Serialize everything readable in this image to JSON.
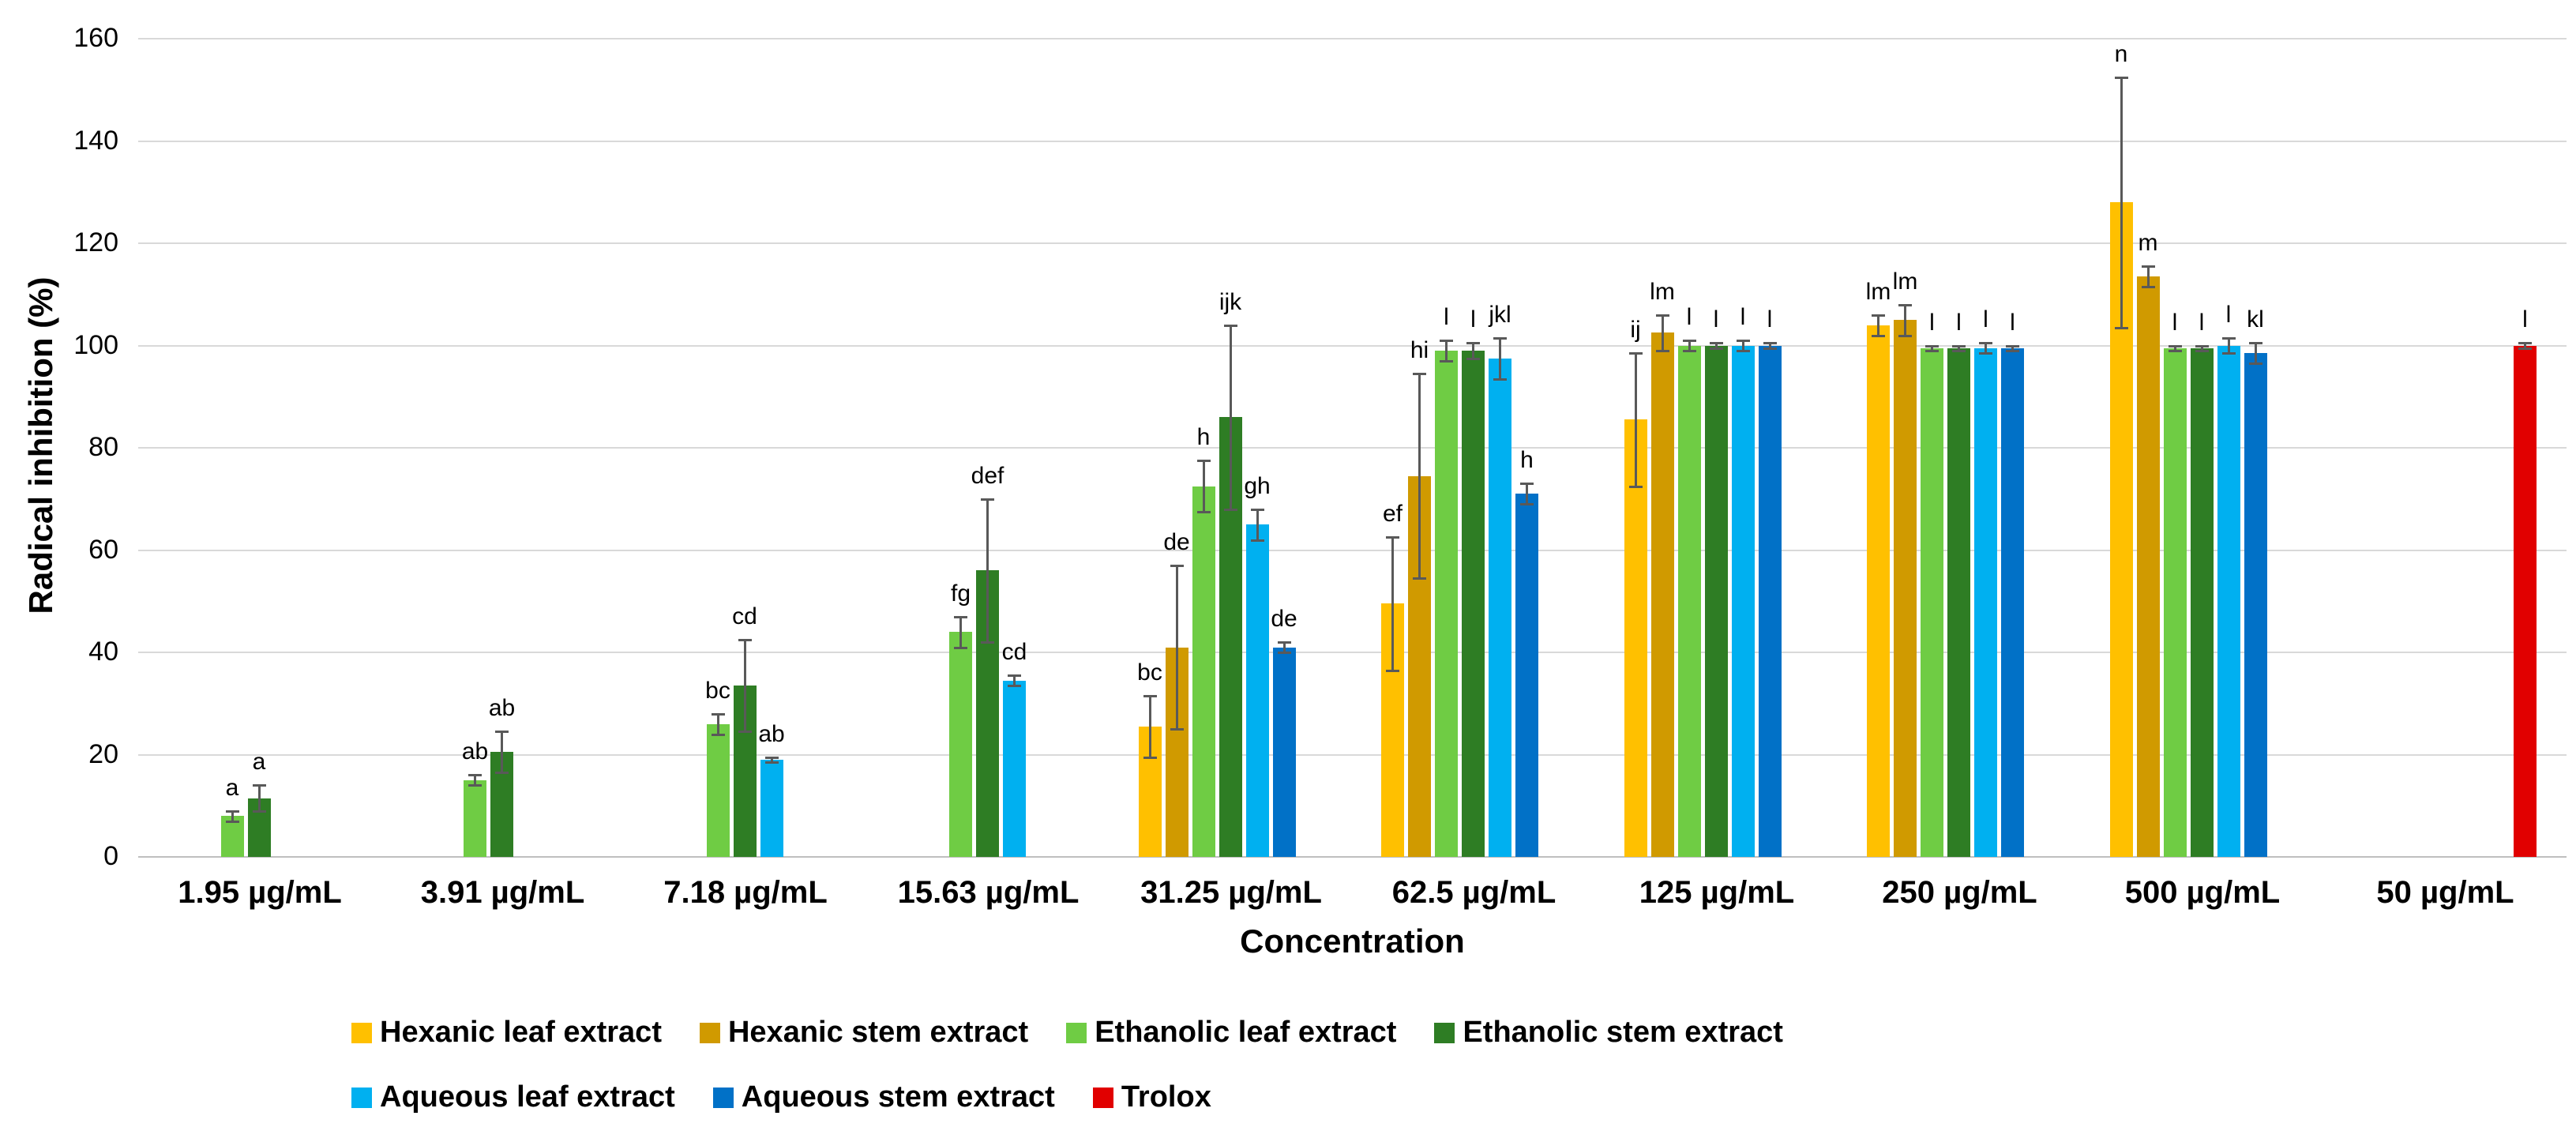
{
  "chart_data": {
    "type": "bar",
    "title": "",
    "xlabel": "Concentration",
    "ylabel": "Radical inhibition (%)",
    "ylim": [
      0,
      160
    ],
    "ytick_step": 20,
    "ytick_labels": [
      "0",
      "20",
      "40",
      "60",
      "80",
      "100",
      "120",
      "140",
      "160"
    ],
    "grid": true,
    "gridline_color": "#d9d9d9",
    "error_bar_color": "#595959",
    "legend_position": "bottom",
    "categories": [
      "1.95 µg/mL",
      "3.91 µg/mL",
      "7.18 µg/mL",
      "15.63 µg/mL",
      "31.25 µg/mL",
      "62.5 µg/mL",
      "125 µg/mL",
      "250 µg/mL",
      "500 µg/mL",
      "50 µg/mL"
    ],
    "series": [
      {
        "name": "Hexanic leaf extract",
        "color": "#FFC000",
        "values": [
          null,
          null,
          null,
          null,
          25.5,
          49.5,
          85.5,
          104,
          128,
          null
        ],
        "errors": [
          null,
          null,
          null,
          null,
          6,
          13,
          13,
          2,
          24.5,
          null
        ],
        "letters": [
          null,
          null,
          null,
          null,
          "bc",
          "ef",
          "ij",
          "lm",
          "n",
          null
        ]
      },
      {
        "name": "Hexanic stem extract",
        "color": "#D09A00",
        "values": [
          null,
          null,
          null,
          null,
          41,
          74.5,
          102.5,
          105,
          113.5,
          null
        ],
        "errors": [
          null,
          null,
          null,
          null,
          16,
          20,
          3.5,
          3,
          2,
          null
        ],
        "letters": [
          null,
          null,
          null,
          null,
          "de",
          "hi",
          "lm",
          "lm",
          "m",
          null
        ]
      },
      {
        "name": "Ethanolic leaf extract",
        "color": "#6FCC44",
        "values": [
          8,
          15,
          26,
          44,
          72.5,
          99,
          100,
          99.5,
          99.5,
          null
        ],
        "errors": [
          1,
          1,
          2,
          3,
          5,
          2,
          1,
          0.5,
          0.5,
          null
        ],
        "letters": [
          "a",
          "ab",
          "bc",
          "fg",
          "h",
          "l",
          "l",
          "l",
          "l",
          null
        ]
      },
      {
        "name": "Ethanolic stem extract",
        "color": "#2E7D24",
        "values": [
          11.5,
          20.5,
          33.5,
          56,
          86,
          99,
          100,
          99.5,
          99.5,
          null
        ],
        "errors": [
          2.5,
          4,
          9,
          14,
          18,
          1.5,
          0.5,
          0.5,
          0.5,
          null
        ],
        "letters": [
          "a",
          "ab",
          "cd",
          "def",
          "ijk",
          "l",
          "l",
          "l",
          "l",
          null
        ]
      },
      {
        "name": "Aqueous leaf extract",
        "color": "#00B0F0",
        "values": [
          null,
          null,
          19,
          34.5,
          65,
          97.5,
          100,
          99.5,
          100,
          null
        ],
        "errors": [
          null,
          null,
          0.5,
          1,
          3,
          4,
          1,
          1,
          1.5,
          null
        ],
        "letters": [
          null,
          null,
          "ab",
          "cd",
          "gh",
          "jkl",
          "l",
          "l",
          "l",
          null
        ]
      },
      {
        "name": "Aqueous stem extract",
        "color": "#0171C7",
        "values": [
          null,
          null,
          null,
          null,
          41,
          71,
          100,
          99.5,
          98.5,
          null
        ],
        "errors": [
          null,
          null,
          null,
          null,
          1,
          2,
          0.5,
          0.5,
          2,
          null
        ],
        "letters": [
          null,
          null,
          null,
          null,
          "de",
          "h",
          "l",
          "l",
          "kl",
          null
        ]
      },
      {
        "name": "Trolox",
        "color": "#E10000",
        "values": [
          null,
          null,
          null,
          null,
          null,
          null,
          null,
          null,
          null,
          100
        ],
        "errors": [
          null,
          null,
          null,
          null,
          null,
          null,
          null,
          null,
          null,
          0.5
        ],
        "letters": [
          null,
          null,
          null,
          null,
          null,
          null,
          null,
          null,
          null,
          "l"
        ]
      }
    ],
    "legend_rows": [
      [
        0,
        1,
        2,
        3
      ],
      [
        4,
        5,
        6
      ]
    ]
  }
}
